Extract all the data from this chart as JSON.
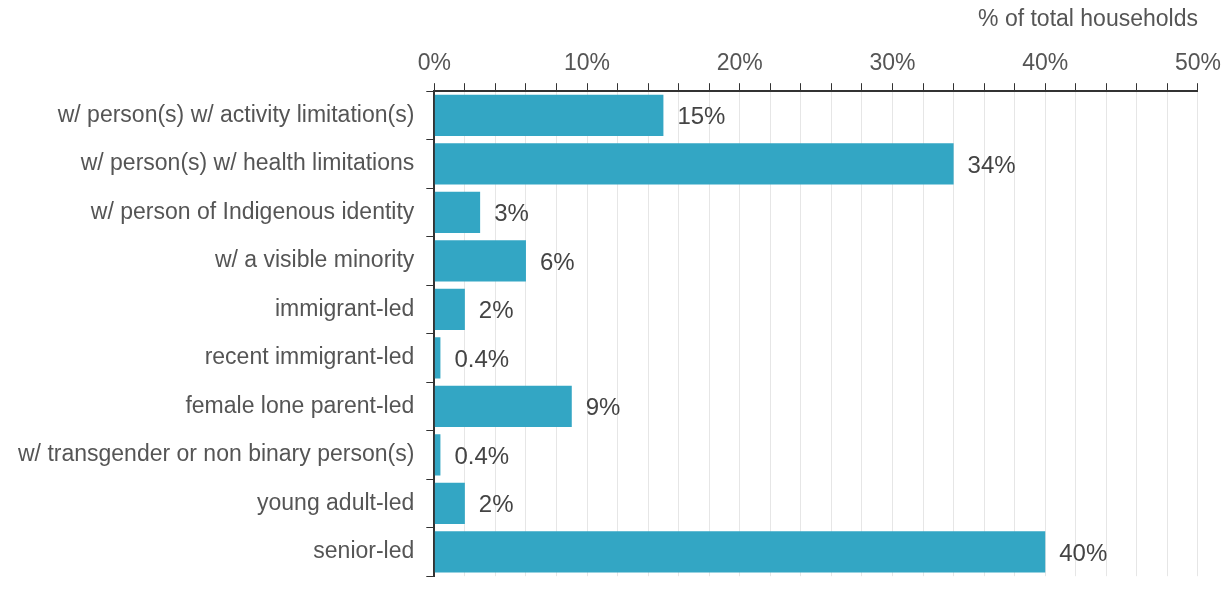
{
  "chart_data": {
    "type": "bar",
    "orientation": "horizontal",
    "xlabel": "% of total households",
    "categories": [
      "w/ person(s) w/ activity limitation(s)",
      "w/ person(s) w/ health limitations",
      "w/ person of Indigenous identity",
      "w/ a visible minority",
      "immigrant-led",
      "recent immigrant-led",
      "female lone parent-led",
      "w/ transgender or non binary person(s)",
      "young adult-led",
      "senior-led"
    ],
    "values": [
      15,
      34,
      3,
      6,
      2,
      0.4,
      9,
      0.4,
      2,
      40
    ],
    "value_labels": [
      "15%",
      "34%",
      "3%",
      "6%",
      "2%",
      "0.4%",
      "9%",
      "0.4%",
      "2%",
      "40%"
    ],
    "color": "#33a6c4",
    "xlim": [
      0,
      50
    ],
    "xticks": [
      {
        "value": 0,
        "label": "0%"
      },
      {
        "value": 2,
        "label": null
      },
      {
        "value": 4,
        "label": null
      },
      {
        "value": 6,
        "label": null
      },
      {
        "value": 8,
        "label": null
      },
      {
        "value": 10,
        "label": "10%"
      },
      {
        "value": 12,
        "label": null
      },
      {
        "value": 14,
        "label": null
      },
      {
        "value": 16,
        "label": null
      },
      {
        "value": 18,
        "label": null
      },
      {
        "value": 20,
        "label": "20%"
      },
      {
        "value": 22,
        "label": null
      },
      {
        "value": 24,
        "label": null
      },
      {
        "value": 26,
        "label": null
      },
      {
        "value": 28,
        "label": null
      },
      {
        "value": 30,
        "label": "30%"
      },
      {
        "value": 32,
        "label": null
      },
      {
        "value": 34,
        "label": null
      },
      {
        "value": 36,
        "label": null
      },
      {
        "value": 38,
        "label": null
      },
      {
        "value": 40,
        "label": "40%"
      },
      {
        "value": 42,
        "label": null
      },
      {
        "value": 44,
        "label": null
      },
      {
        "value": 46,
        "label": null
      },
      {
        "value": 48,
        "label": null
      },
      {
        "value": 50,
        "label": "50%"
      }
    ],
    "grid": "x",
    "legend": false
  }
}
